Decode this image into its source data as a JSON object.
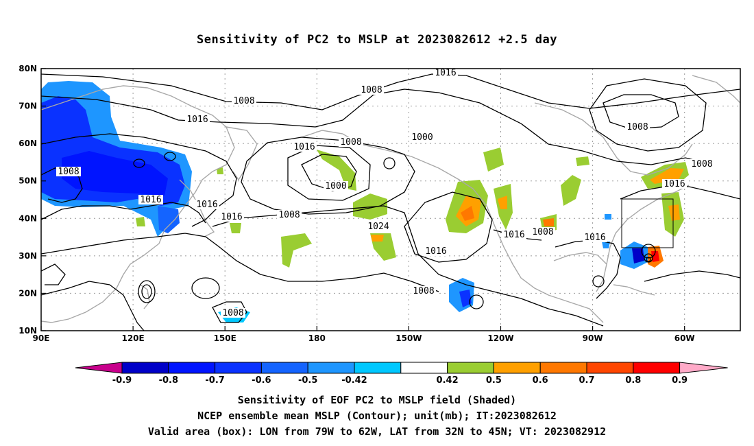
{
  "title": "Sensitivity of PC2 to MSLP at 2023082612 +2.5 day",
  "map": {
    "lat_labels": [
      "80N",
      "70N",
      "60N",
      "50N",
      "40N",
      "30N",
      "20N",
      "10N"
    ],
    "lon_labels": [
      "90E",
      "120E",
      "150E",
      "180",
      "150W",
      "120W",
      "90W",
      "60W"
    ],
    "grid": "dotted",
    "valid_box": {
      "lon": [
        "79W",
        "62W"
      ],
      "lat": [
        "32N",
        "45N"
      ]
    },
    "contour_labels": [
      "1008",
      "1016",
      "1008",
      "1016",
      "1000",
      "1016",
      "1016",
      "1008",
      "1016",
      "1008",
      "1008",
      "1000",
      "1016",
      "1024",
      "1016",
      "1008",
      "1016",
      "1008",
      "1016",
      "1008",
      "1008"
    ],
    "colors": {
      "contour": "#000000",
      "coastline": "#a8a8a8",
      "negative_shade": "#0028ff",
      "positive_shade": "#ff8c00",
      "light_positive": "#9acd32"
    }
  },
  "colorbar": {
    "labels": [
      "-0.9",
      "-0.8",
      "-0.7",
      "-0.6",
      "-0.5",
      "-0.42",
      "0.42",
      "0.5",
      "0.6",
      "0.7",
      "0.8",
      "0.9"
    ],
    "colors": [
      "#c8008c",
      "#0000c8",
      "#0014ff",
      "#0a32ff",
      "#1464ff",
      "#1e96ff",
      "#00c8ff",
      "#ffffff",
      "#9acd32",
      "#ffa000",
      "#ff7800",
      "#ff4600",
      "#ff0000",
      "#ffaac8"
    ]
  },
  "captions": [
    "Sensitivity of EOF PC2 to MSLP field (Shaded)",
    "NCEP ensemble mean MSLP (Contour); unit(mb); IT:2023082612",
    "Valid area (box): LON from 79W to 62W, LAT from 32N to 45N; VT: 2023082912"
  ]
}
